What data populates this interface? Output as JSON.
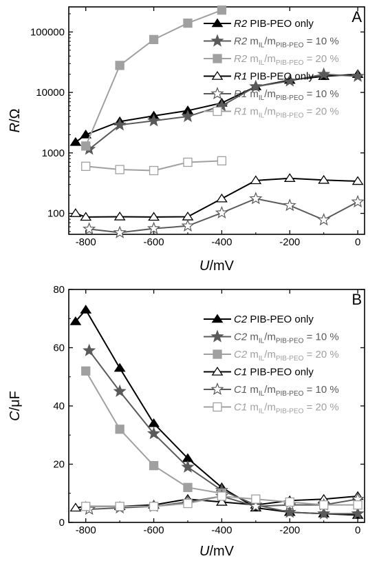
{
  "chart_data": [
    {
      "type": "line",
      "panel_label": "A",
      "xlabel": "U/mV",
      "ylabel": "R/Ω",
      "y_scale": "log",
      "xlim": [
        -850,
        20
      ],
      "ylim": [
        45,
        260000
      ],
      "x_ticks": [
        -800,
        -600,
        -400,
        -200,
        0
      ],
      "y_ticks": [
        100,
        1000,
        10000,
        100000
      ],
      "y_tick_labels": [
        "100",
        "1000",
        "10000",
        "100000"
      ],
      "grid": false,
      "legend_position": "right, upper half",
      "series": [
        {
          "name": "R2 PIB-PEO only",
          "color": "#000000",
          "marker": "triangle",
          "filled": true,
          "x": [
            -830,
            -800,
            -700,
            -600,
            -500,
            -400,
            -300,
            -200,
            -100,
            0
          ],
          "y": [
            1500,
            2000,
            3300,
            4100,
            5000,
            6700,
            12500,
            16000,
            18500,
            20000
          ]
        },
        {
          "name": "R2 mIL/mPIB-PEO = 10 %",
          "color": "#5a5a5a",
          "marker": "star",
          "filled": true,
          "x": [
            -790,
            -700,
            -600,
            -500,
            -400,
            -300,
            -200,
            -100,
            0
          ],
          "y": [
            1150,
            2900,
            3400,
            4000,
            6000,
            12500,
            15500,
            20000,
            18500
          ]
        },
        {
          "name": "R2 mIL/mPIB-PEO = 20 %",
          "color": "#a0a0a0",
          "marker": "square",
          "filled": true,
          "x": [
            -800,
            -700,
            -600,
            -500,
            -400
          ],
          "y": [
            1300,
            28000,
            75000,
            140000,
            230000
          ]
        },
        {
          "name": "R1 PIB-PEO only",
          "color": "#000000",
          "marker": "triangle",
          "filled": false,
          "x": [
            -830,
            -800,
            -700,
            -600,
            -500,
            -400,
            -300,
            -200,
            -100,
            0
          ],
          "y": [
            100,
            87,
            88,
            87,
            88,
            175,
            350,
            380,
            355,
            340
          ]
        },
        {
          "name": "R1 mIL/mPIB-PEO = 10 %",
          "color": "#5a5a5a",
          "marker": "star",
          "filled": false,
          "x": [
            -790,
            -700,
            -600,
            -500,
            -400,
            -300,
            -200,
            -100,
            0
          ],
          "y": [
            55,
            48,
            56,
            62,
            102,
            175,
            135,
            78,
            155
          ]
        },
        {
          "name": "R1 mIL/mPIB-PEO = 20 %",
          "color": "#a0a0a0",
          "marker": "square",
          "filled": false,
          "x": [
            -800,
            -700,
            -600,
            -500,
            -400
          ],
          "y": [
            600,
            530,
            510,
            700,
            740
          ]
        }
      ],
      "legend": [
        {
          "italic": "R2",
          "rest": "PIB-PEO only",
          "sub": "",
          "tail": ""
        },
        {
          "italic": "R2",
          "rest": "m",
          "sub": "IL",
          "mid": "/m",
          "sub2": "PIB-PEO",
          "tail": "= 10 %"
        },
        {
          "italic": "R2",
          "rest": "m",
          "sub": "IL",
          "mid": "/m",
          "sub2": "PIB-PEO",
          "tail": "= 20 %"
        },
        {
          "italic": "R1",
          "rest": "PIB-PEO only",
          "sub": "",
          "tail": ""
        },
        {
          "italic": "R1",
          "rest": "m",
          "sub": "IL",
          "mid": "/m",
          "sub2": "PIB-PEO",
          "tail": "= 10 %"
        },
        {
          "italic": "R1",
          "rest": "m",
          "sub": "IL",
          "mid": "/m",
          "sub2": "PIB-PEO",
          "tail": "= 20 %"
        }
      ]
    },
    {
      "type": "line",
      "panel_label": "B",
      "xlabel": "U/mV",
      "ylabel": "C/μF",
      "y_scale": "linear",
      "xlim": [
        -850,
        20
      ],
      "ylim": [
        0,
        80
      ],
      "x_ticks": [
        -800,
        -600,
        -400,
        -200,
        0
      ],
      "y_ticks": [
        0,
        20,
        40,
        60,
        80
      ],
      "grid": false,
      "legend_position": "right, upper half",
      "series": [
        {
          "name": "C2 PIB-PEO only",
          "color": "#000000",
          "marker": "triangle",
          "filled": true,
          "x": [
            -830,
            -800,
            -700,
            -600,
            -500,
            -400,
            -300,
            -200,
            -100,
            0
          ],
          "y": [
            69,
            73,
            53,
            34,
            22,
            12,
            5,
            3.5,
            3,
            2.5
          ]
        },
        {
          "name": "C2 mIL/mPIB-PEO = 10 %",
          "color": "#5a5a5a",
          "marker": "star",
          "filled": true,
          "x": [
            -790,
            -700,
            -600,
            -500,
            -400,
            -300,
            -200,
            -100,
            0
          ],
          "y": [
            59,
            45,
            30.5,
            19,
            11,
            6,
            3.5,
            3,
            3
          ]
        },
        {
          "name": "C2 mIL/mPIB-PEO = 20 %",
          "color": "#a0a0a0",
          "marker": "square",
          "filled": true,
          "x": [
            -800,
            -700,
            -600,
            -500,
            -400
          ],
          "y": [
            52,
            32,
            19.5,
            12,
            10
          ]
        },
        {
          "name": "C1 PIB-PEO only",
          "color": "#000000",
          "marker": "triangle",
          "filled": false,
          "x": [
            -830,
            -800,
            -700,
            -600,
            -500,
            -400,
            -300,
            -200,
            -100,
            0
          ],
          "y": [
            5,
            5.5,
            5.5,
            6,
            8,
            7,
            6,
            7.5,
            8,
            9
          ]
        },
        {
          "name": "C1 mIL/mPIB-PEO = 10 %",
          "color": "#5a5a5a",
          "marker": "star",
          "filled": false,
          "x": [
            -790,
            -700,
            -600,
            -500,
            -400,
            -300,
            -200,
            -100,
            0
          ],
          "y": [
            4.5,
            5,
            5.5,
            7,
            9,
            5.5,
            6,
            6,
            8
          ]
        },
        {
          "name": "C1 mIL/mPIB-PEO = 20 %",
          "color": "#a0a0a0",
          "marker": "square",
          "filled": false,
          "x": [
            -800,
            -700,
            -600,
            -500,
            -400,
            -300,
            -200,
            -100,
            0
          ],
          "y": [
            5.5,
            5.5,
            5.5,
            6.5,
            9,
            8,
            7,
            6,
            6
          ]
        }
      ],
      "legend": [
        {
          "italic": "C2",
          "rest": "PIB-PEO only",
          "sub": "",
          "tail": ""
        },
        {
          "italic": "C2",
          "rest": "m",
          "sub": "IL",
          "mid": "/m",
          "sub2": "PIB-PEO",
          "tail": "= 10 %"
        },
        {
          "italic": "C2",
          "rest": "m",
          "sub": "IL",
          "mid": "/m",
          "sub2": "PIB-PEO",
          "tail": "= 20 %"
        },
        {
          "italic": "C1",
          "rest": "PIB-PEO only",
          "sub": "",
          "tail": ""
        },
        {
          "italic": "C1",
          "rest": "m",
          "sub": "IL",
          "mid": "/m",
          "sub2": "PIB-PEO",
          "tail": "= 10 %"
        },
        {
          "italic": "C1",
          "rest": "m",
          "sub": "IL",
          "mid": "/m",
          "sub2": "PIB-PEO",
          "tail": "= 20 %"
        }
      ]
    }
  ]
}
